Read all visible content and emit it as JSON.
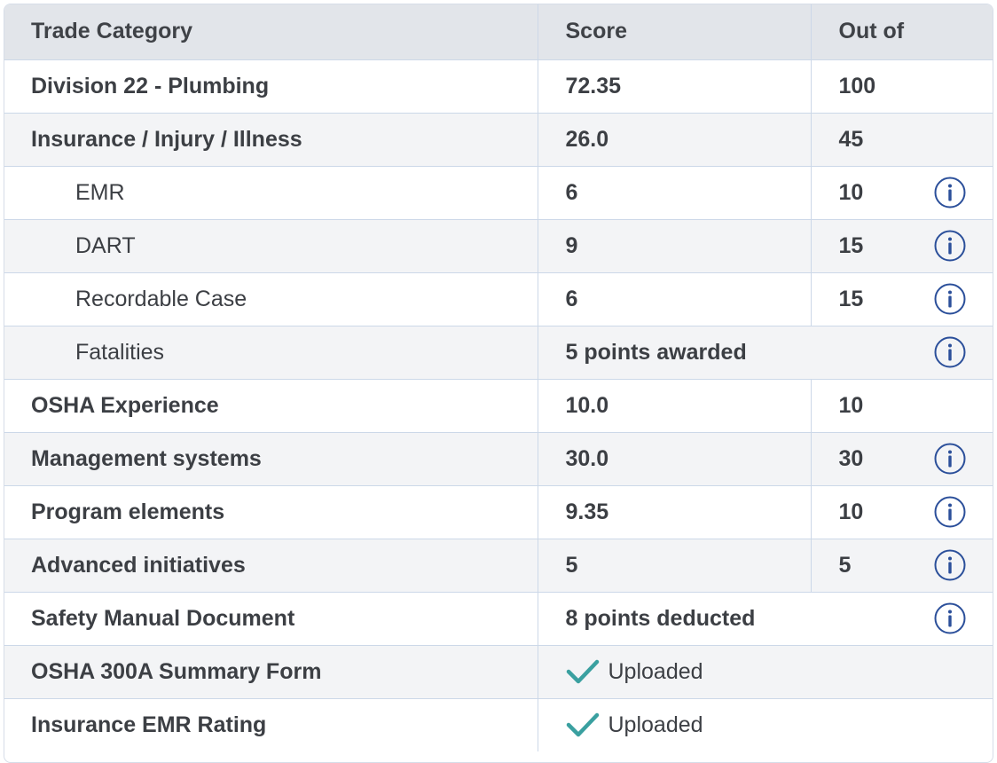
{
  "header": {
    "col1": "Trade Category",
    "col2": "Score",
    "col3": "Out of"
  },
  "rows": [
    {
      "label": "Division 22 - Plumbing",
      "score": "72.35",
      "outof": "100"
    },
    {
      "label": "Insurance / Injury / Illness",
      "score": "26.0",
      "outof": "45"
    },
    {
      "label": "EMR",
      "score": "6",
      "outof": "10"
    },
    {
      "label": "DART",
      "score": "9",
      "outof": "15"
    },
    {
      "label": "Recordable Case",
      "score": "6",
      "outof": "15"
    },
    {
      "label": "Fatalities",
      "merged": "5 points awarded"
    },
    {
      "label": "OSHA Experience",
      "score": "10.0",
      "outof": "10"
    },
    {
      "label": "Management systems",
      "score": "30.0",
      "outof": "30"
    },
    {
      "label": "Program elements",
      "score": "9.35",
      "outof": "10"
    },
    {
      "label": "Advanced initiatives",
      "score": "5",
      "outof": "5"
    },
    {
      "label": "Safety Manual Document",
      "merged": "8 points deducted"
    },
    {
      "label": "OSHA 300A Summary Form",
      "status": "Uploaded"
    },
    {
      "label": "Insurance EMR Rating",
      "status": "Uploaded"
    }
  ],
  "colors": {
    "info_icon": "#2b4f9a",
    "check_icon": "#3aa0a0",
    "header_bg": "#e2e5ea",
    "border": "#ccd8e8"
  },
  "icons": {
    "info": "info-circle-icon",
    "check": "checkmark-icon"
  }
}
